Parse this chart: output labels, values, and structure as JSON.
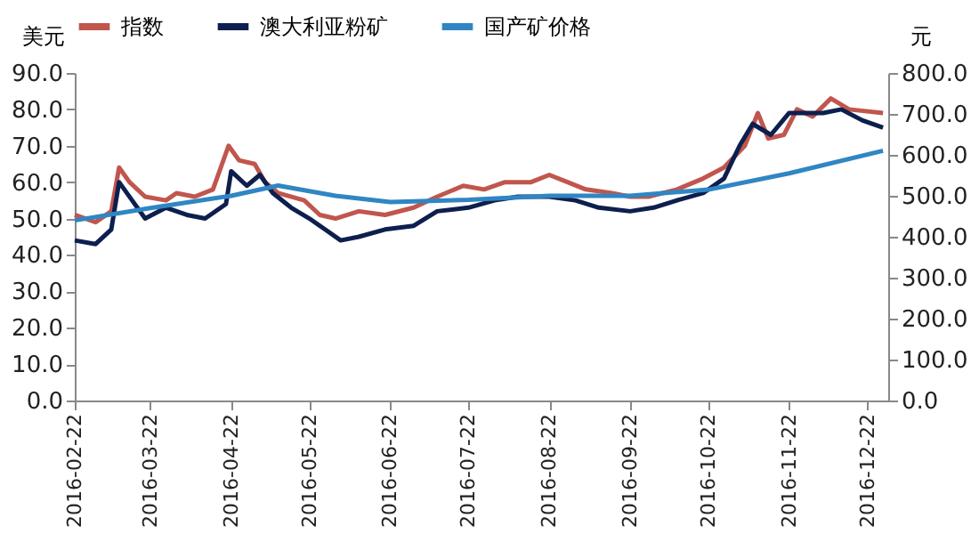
{
  "chart_data": {
    "type": "line",
    "ylabel": "美元",
    "y2label": "元",
    "series": [
      {
        "name": "指数",
        "color": "#c0564e",
        "x": [
          "2016-02-22",
          "2016-03-01",
          "2016-03-07",
          "2016-03-10",
          "2016-03-14",
          "2016-03-20",
          "2016-03-28",
          "2016-04-01",
          "2016-04-08",
          "2016-04-15",
          "2016-04-21",
          "2016-04-25",
          "2016-05-01",
          "2016-05-05",
          "2016-05-10",
          "2016-05-20",
          "2016-05-26",
          "2016-06-01",
          "2016-06-10",
          "2016-06-20",
          "2016-07-01",
          "2016-07-10",
          "2016-07-20",
          "2016-07-28",
          "2016-08-05",
          "2016-08-15",
          "2016-08-22",
          "2016-08-29",
          "2016-09-05",
          "2016-09-15",
          "2016-09-22",
          "2016-09-29",
          "2016-10-10",
          "2016-10-20",
          "2016-10-28",
          "2016-11-05",
          "2016-11-10",
          "2016-11-14",
          "2016-11-20",
          "2016-11-25",
          "2016-12-01",
          "2016-12-08",
          "2016-12-15",
          "2016-12-28"
        ],
        "values": [
          51,
          49,
          52,
          64,
          60,
          56,
          55,
          57,
          56,
          58,
          70,
          66,
          65,
          60,
          57,
          55,
          51,
          50,
          52,
          51,
          53,
          56,
          59,
          58,
          60,
          60,
          62,
          60,
          58,
          57,
          56,
          56,
          58,
          61,
          64,
          70,
          79,
          72,
          73,
          80,
          78,
          83,
          80,
          79
        ]
      },
      {
        "name": "澳大利亚粉矿",
        "color": "#0d1f4e",
        "x": [
          "2016-02-22",
          "2016-03-01",
          "2016-03-07",
          "2016-03-10",
          "2016-03-15",
          "2016-03-20",
          "2016-03-28",
          "2016-04-05",
          "2016-04-12",
          "2016-04-20",
          "2016-04-22",
          "2016-04-28",
          "2016-05-03",
          "2016-05-08",
          "2016-05-15",
          "2016-05-22",
          "2016-05-28",
          "2016-06-03",
          "2016-06-10",
          "2016-06-20",
          "2016-07-01",
          "2016-07-10",
          "2016-07-22",
          "2016-08-01",
          "2016-08-10",
          "2016-08-22",
          "2016-09-01",
          "2016-09-10",
          "2016-09-22",
          "2016-10-01",
          "2016-10-10",
          "2016-10-20",
          "2016-10-28",
          "2016-11-03",
          "2016-11-08",
          "2016-11-15",
          "2016-11-22",
          "2016-11-28",
          "2016-12-05",
          "2016-12-12",
          "2016-12-20",
          "2016-12-28"
        ],
        "values": [
          44,
          43,
          47,
          60,
          55,
          50,
          53,
          51,
          50,
          54,
          63,
          59,
          62,
          57,
          53,
          50,
          47,
          44,
          45,
          47,
          48,
          52,
          53,
          55,
          56,
          56,
          55,
          53,
          52,
          53,
          55,
          57,
          61,
          70,
          76,
          73,
          79,
          79,
          79,
          80,
          77,
          75
        ]
      },
      {
        "name": "国产矿价格",
        "color": "#2f86c3",
        "axis": "y2",
        "x": [
          "2016-02-22",
          "2016-03-22",
          "2016-04-22",
          "2016-05-10",
          "2016-06-01",
          "2016-06-22",
          "2016-07-22",
          "2016-08-22",
          "2016-09-22",
          "2016-10-22",
          "2016-11-22",
          "2016-12-28"
        ],
        "values": [
          440,
          470,
          500,
          525,
          500,
          485,
          490,
          500,
          500,
          515,
          555,
          610
        ]
      }
    ],
    "xlim": [
      "2016-02-22",
      "2016-12-30"
    ],
    "xticks": [
      "2016-02-22",
      "2016-03-22",
      "2016-04-22",
      "2016-05-22",
      "2016-06-22",
      "2016-07-22",
      "2016-08-22",
      "2016-09-22",
      "2016-10-22",
      "2016-11-22",
      "2016-12-22"
    ],
    "ylim": [
      0,
      90
    ],
    "yticks": [
      {
        "value": 0,
        "label": "0.0"
      },
      {
        "value": 10,
        "label": "10.0"
      },
      {
        "value": 20,
        "label": "20.0"
      },
      {
        "value": 30,
        "label": "30.0"
      },
      {
        "value": 40,
        "label": "40.0"
      },
      {
        "value": 50,
        "label": "50.0"
      },
      {
        "value": 60,
        "label": "60.0"
      },
      {
        "value": 70,
        "label": "70.0"
      },
      {
        "value": 80,
        "label": "80.0"
      },
      {
        "value": 90,
        "label": "90.0"
      }
    ],
    "y2lim": [
      0,
      800
    ],
    "y2ticks": [
      {
        "value": 0,
        "label": "0.0"
      },
      {
        "value": 100,
        "label": "100.0"
      },
      {
        "value": 200,
        "label": "200.0"
      },
      {
        "value": 300,
        "label": "300.0"
      },
      {
        "value": 400,
        "label": "400.0"
      },
      {
        "value": 500,
        "label": "500.0"
      },
      {
        "value": 600,
        "label": "600.0"
      },
      {
        "value": 700,
        "label": "700.0"
      },
      {
        "value": 800,
        "label": "800.0"
      }
    ],
    "legend": "top",
    "grid": false
  }
}
